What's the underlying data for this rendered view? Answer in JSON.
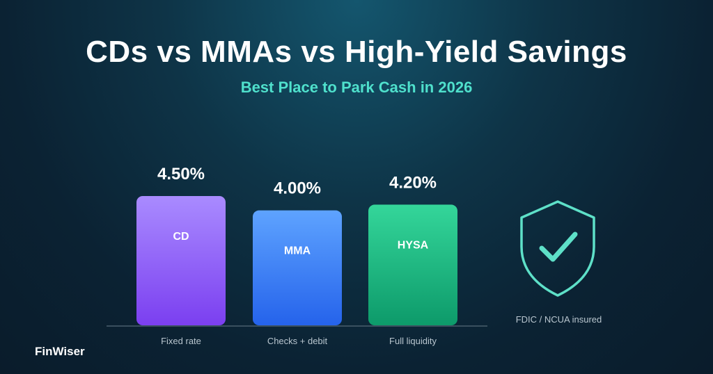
{
  "header": {
    "title": "CDs vs MMAs vs High-Yield Savings",
    "subtitle": "Best Place to Park Cash in 2026"
  },
  "chart_data": {
    "type": "bar",
    "categories": [
      "CD",
      "MMA",
      "HYSA"
    ],
    "values": [
      4.5,
      4.0,
      4.2
    ],
    "value_labels": [
      "4.50%",
      "4.00%",
      "4.20%"
    ],
    "descriptions": [
      "Fixed rate",
      "Checks + debit",
      "Full liquidity"
    ],
    "colors": [
      [
        "#a98bff",
        "#7b3ff0"
      ],
      [
        "#5ea3ff",
        "#2563eb"
      ],
      [
        "#34d69a",
        "#0d9a6a"
      ]
    ],
    "ylim": [
      0,
      4.5
    ],
    "grid": false
  },
  "badge": {
    "icon": "shield-check-icon",
    "label": "FDIC / NCUA insured",
    "color": "#5ee0c8"
  },
  "footer": {
    "brand": "FinWiser"
  }
}
